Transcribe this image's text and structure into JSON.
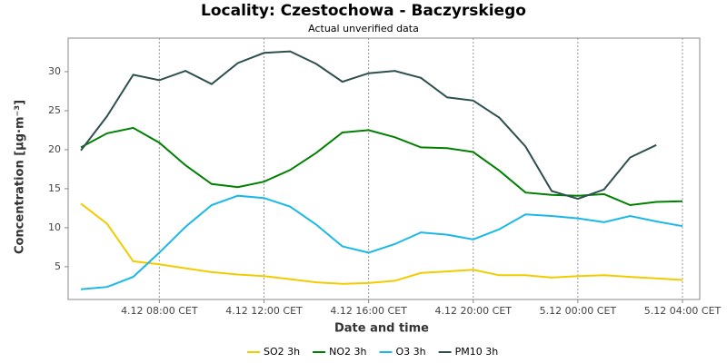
{
  "chart_data": {
    "type": "line",
    "title": "Locality: Czestochowa - Baczyrskiego",
    "subtitle": "Actual unverified data",
    "xlabel": "Date and time",
    "ylabel": "Concentration [µg·m⁻³]",
    "categories": [
      null,
      null,
      null,
      "4.12 08:00 CET",
      null,
      null,
      null,
      "4.12 12:00 CET",
      null,
      null,
      null,
      "4.12 16:00 CET",
      null,
      null,
      null,
      "4.12 20:00 CET",
      null,
      null,
      null,
      "5.12 00:00 CET",
      null,
      null,
      null,
      "5.12 04:00 CET"
    ],
    "series": [
      {
        "name": "SO2 3h",
        "color": "#f2cc00",
        "values": [
          13.1,
          10.5,
          5.7,
          5.3,
          4.8,
          4.3,
          4.0,
          3.8,
          3.4,
          3.0,
          2.8,
          2.9,
          3.2,
          4.2,
          4.4,
          4.6,
          3.9,
          3.9,
          3.6,
          3.8,
          3.9,
          3.7,
          3.5,
          3.3
        ]
      },
      {
        "name": "NO2 3h",
        "color": "#008000",
        "values": [
          20.3,
          22.1,
          22.8,
          20.9,
          18.0,
          15.6,
          15.2,
          15.9,
          17.4,
          19.6,
          22.2,
          22.5,
          21.6,
          20.3,
          20.2,
          19.7,
          17.3,
          14.5,
          14.2,
          14.1,
          14.3,
          12.9,
          13.3,
          13.4
        ]
      },
      {
        "name": "O3 3h",
        "color": "#1ab8e8",
        "values": [
          2.1,
          2.4,
          3.7,
          6.8,
          10.1,
          12.9,
          14.1,
          13.8,
          12.7,
          10.4,
          7.6,
          6.8,
          7.9,
          9.4,
          9.1,
          8.5,
          9.8,
          11.7,
          11.5,
          11.2,
          10.7,
          11.5,
          10.8,
          10.2
        ]
      },
      {
        "name": "PM10 3h",
        "color": "#2f4f4f",
        "values": [
          19.9,
          24.3,
          29.6,
          28.9,
          30.1,
          28.4,
          31.1,
          32.4,
          32.6,
          31.0,
          28.7,
          29.8,
          30.1,
          29.2,
          26.7,
          26.3,
          24.1,
          20.4,
          14.7,
          13.7,
          14.9,
          19.0,
          20.6,
          null
        ]
      }
    ],
    "ylim": [
      0.8,
      34.3
    ],
    "yticks": [
      5,
      10,
      15,
      20,
      25,
      30
    ],
    "grid": "x",
    "legend": "bottom"
  }
}
